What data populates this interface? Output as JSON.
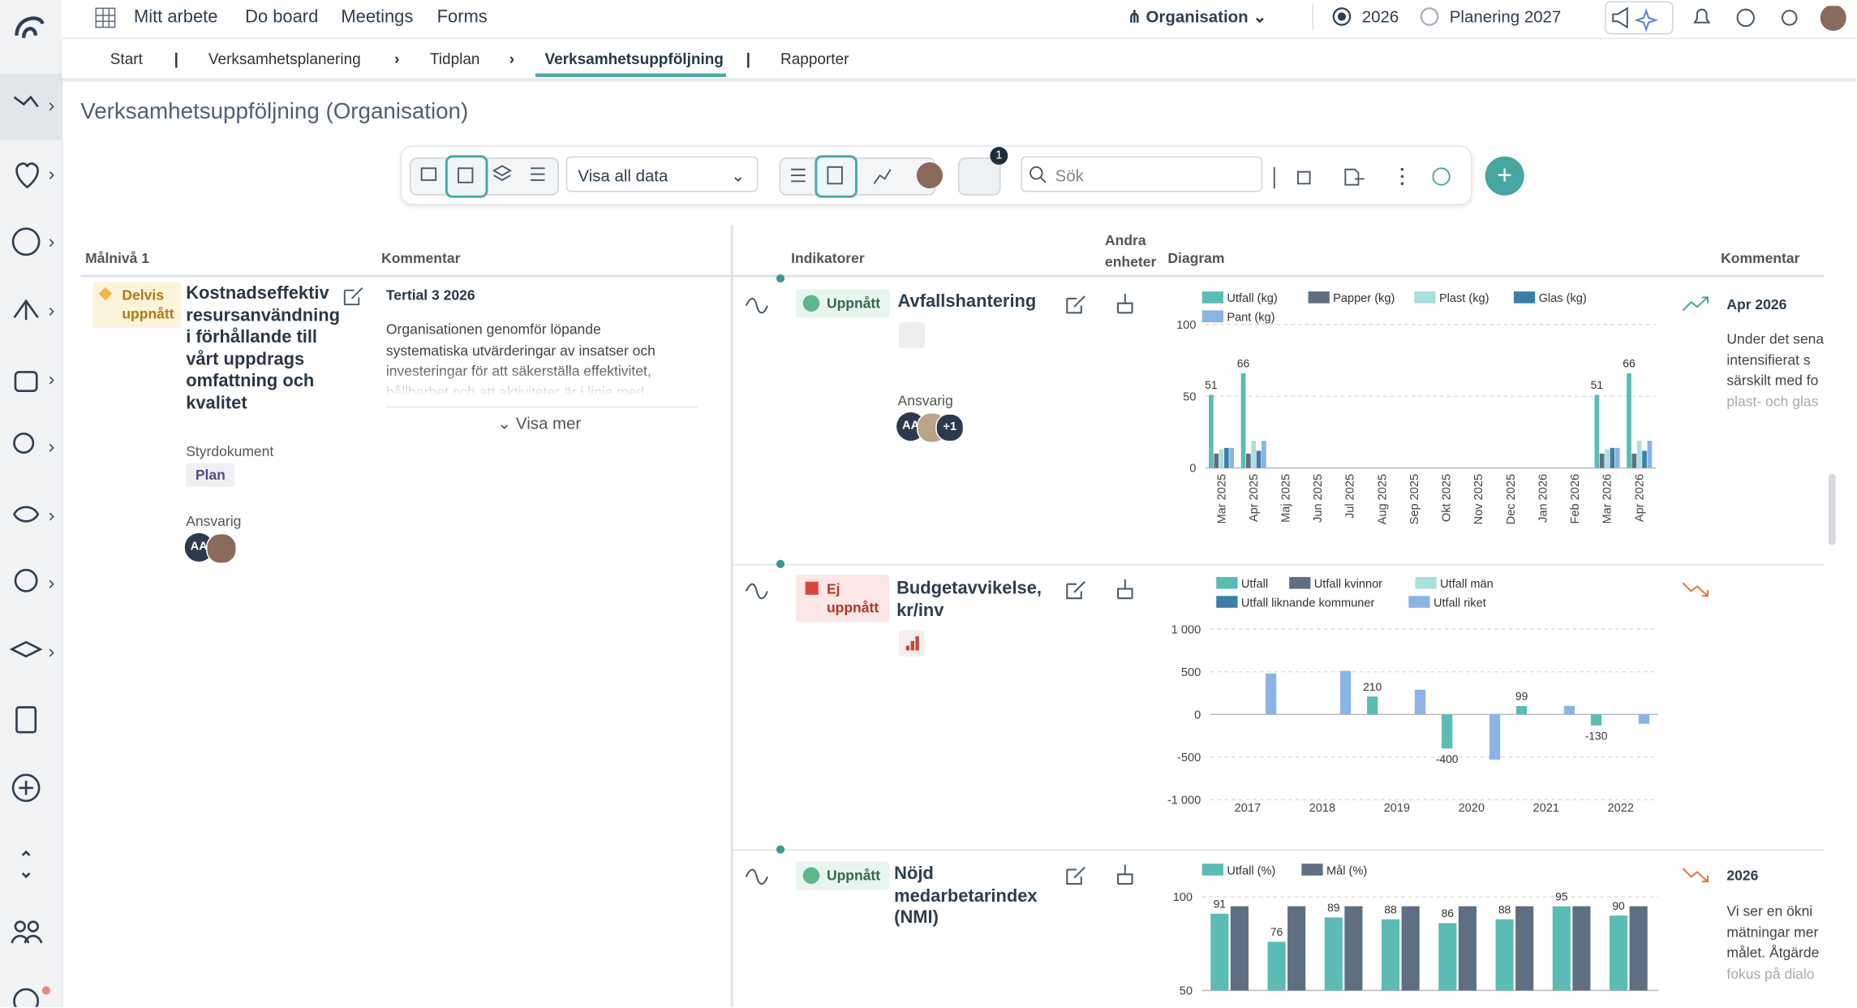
{
  "topnav": {
    "items": [
      "Mitt arbete",
      "Do board",
      "Meetings",
      "Forms"
    ],
    "org": "Organisation",
    "year": "2026",
    "plan": "Planering 2027"
  },
  "breadcrumb": [
    "Start",
    "Verksamhetsplanering",
    "Tidplan",
    "Verksamhetsuppföljning",
    "Rapporter"
  ],
  "page_title": "Verksamhetsuppföljning (Organisation)",
  "toolbar": {
    "view_select": "Visa all data",
    "filter_count": 1,
    "search_placeholder": "Sök"
  },
  "left_table": {
    "headers": [
      "Målnivå 1",
      "Kommentar"
    ],
    "goal": {
      "status": "Delvis uppnått",
      "title": "Kostnadseffektiv resursanvändning i förhållande till vårt uppdrags omfattning och kvalitet",
      "doc_label": "Styrdokument",
      "doc_tag": "Plan",
      "owner_label": "Ansvarig",
      "owner_initials": "AA"
    },
    "comment": {
      "period": "Tertial 3 2026",
      "text": "Organisationen genomför löpande systematiska utvärderingar av insatser och investeringar för att säkerställa effektivitet, hållbarhet och att aktiviteter är i linje med",
      "more": "Visa mer"
    }
  },
  "right_table": {
    "headers": [
      "Indikatorer",
      "Andra enheter",
      "Diagram",
      "Kommentar"
    ],
    "rows": [
      {
        "status": "Uppnått",
        "name": "Avfallshantering",
        "owner_label": "Ansvarig",
        "owner_initials": "AA",
        "owner_extra": "+1",
        "comment_period": "Apr 2026",
        "comment_lines": [
          "Under det sena",
          "intensifierat s",
          "särskilt med fo",
          "plast- och glas"
        ]
      },
      {
        "status": "Ej uppnått",
        "name": "Budgetavvikelse, kr/inv"
      },
      {
        "status": "Uppnått",
        "name": "Nöjd medarbetarindex (NMI)",
        "comment_period": "2026",
        "comment_lines": [
          "Vi ser en ökni",
          "mätningar mer",
          "målet. Åtgärde",
          "fokus på dialo"
        ]
      }
    ]
  },
  "chart_data": [
    {
      "type": "bar",
      "rotated_x_labels": true,
      "grid": true,
      "categories": [
        "Mar 2025",
        "Apr 2025",
        "Maj 2025",
        "Jun 2025",
        "Jul 2025",
        "Aug 2025",
        "Sep 2025",
        "Okt 2025",
        "Nov 2025",
        "Dec 2025",
        "Jan 2026",
        "Feb 2026",
        "Mar 2026",
        "Apr 2026"
      ],
      "series": [
        {
          "name": "Utfall (kg)",
          "color": "#5bbcb5",
          "show_labels": true,
          "values": [
            51,
            66,
            null,
            null,
            null,
            null,
            null,
            null,
            null,
            null,
            null,
            null,
            51,
            66
          ]
        },
        {
          "name": "Papper (kg)",
          "color": "#5f6f82",
          "values": [
            10,
            10,
            null,
            null,
            null,
            null,
            null,
            null,
            null,
            null,
            null,
            null,
            10,
            10
          ]
        },
        {
          "name": "Plast (kg)",
          "color": "#a8e0dc",
          "values": [
            13,
            19,
            null,
            null,
            null,
            null,
            null,
            null,
            null,
            null,
            null,
            null,
            13,
            19
          ]
        },
        {
          "name": "Glas (kg)",
          "color": "#3d7ea6",
          "values": [
            14,
            12,
            null,
            null,
            null,
            null,
            null,
            null,
            null,
            null,
            null,
            null,
            14,
            12
          ]
        },
        {
          "name": "Pant (kg)",
          "color": "#8ab4e6",
          "values": [
            14,
            19,
            null,
            null,
            null,
            null,
            null,
            null,
            null,
            null,
            null,
            null,
            14,
            19
          ]
        }
      ],
      "ylim": [
        0,
        100
      ],
      "yticks": [
        0,
        50,
        100
      ]
    },
    {
      "type": "bar",
      "rotated_x_labels": false,
      "grid": true,
      "categories": [
        "2017",
        "2018",
        "2019",
        "2020",
        "2021",
        "2022"
      ],
      "series": [
        {
          "name": "Utfall",
          "color": "#5bbcb5",
          "show_labels": true,
          "values": [
            null,
            null,
            210,
            -400,
            99,
            -130
          ]
        },
        {
          "name": "Utfall kvinnor",
          "color": "#5f6f82",
          "values": [
            null,
            null,
            null,
            null,
            null,
            null
          ]
        },
        {
          "name": "Utfall män",
          "color": "#a8e0dc",
          "values": [
            null,
            null,
            null,
            null,
            null,
            null
          ]
        },
        {
          "name": "Utfall liknande kommuner",
          "color": "#3d7ea6",
          "values": [
            null,
            null,
            null,
            null,
            null,
            null
          ]
        },
        {
          "name": "Utfall riket",
          "color": "#8ab4e6",
          "values": [
            480,
            510,
            290,
            -530,
            100,
            -110
          ]
        }
      ],
      "ylim": [
        -1000,
        1000
      ],
      "yticks": [
        {
          "value": -1000,
          "label": "-1 000"
        },
        -500,
        0,
        500,
        {
          "value": 1000,
          "label": "1 000"
        }
      ]
    },
    {
      "type": "bar",
      "rotated_x_labels": false,
      "grid": true,
      "categories": [
        null,
        null,
        null,
        null,
        null,
        null,
        null,
        null
      ],
      "series": [
        {
          "name": "Utfall (%)",
          "color": "#5bbcb5",
          "show_labels": true,
          "values": [
            91,
            76,
            89,
            88,
            86,
            88,
            95,
            90
          ]
        },
        {
          "name": "Mål (%)",
          "color": "#5f6f82",
          "values": [
            95,
            95,
            95,
            95,
            95,
            95,
            95,
            95
          ]
        }
      ],
      "ylim": [
        50,
        100
      ],
      "yticks": [
        50,
        100
      ]
    }
  ]
}
